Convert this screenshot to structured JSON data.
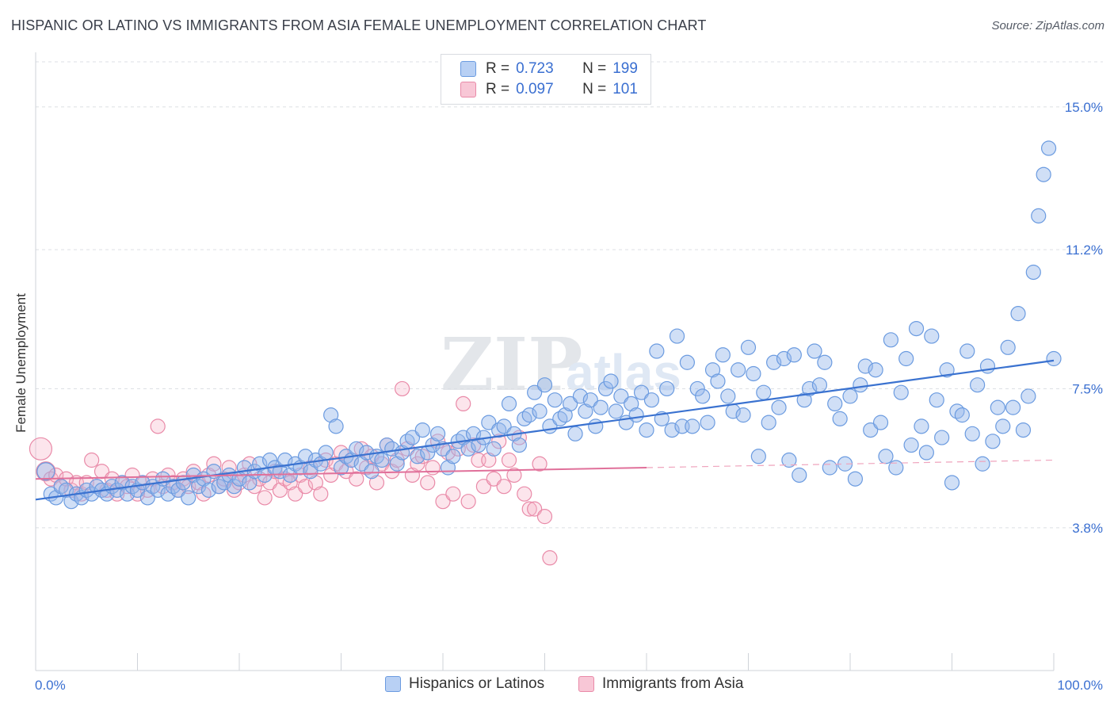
{
  "title": "HISPANIC OR LATINO VS IMMIGRANTS FROM ASIA FEMALE UNEMPLOYMENT CORRELATION CHART",
  "source": "Source: ZipAtlas.com",
  "watermark": "ZIPatlas",
  "legend": {
    "r_label": "R =",
    "n_label": "N =",
    "rows": [
      {
        "series": "Hispanics or Latinos",
        "r": "0.723",
        "n": "199",
        "color": "#4a7fd4"
      },
      {
        "series": "Immigrants from Asia",
        "r": "0.097",
        "n": "101",
        "color": "#e27aa0"
      }
    ]
  },
  "bottom_legend": [
    "Hispanics or Latinos",
    "Immigrants from Asia"
  ],
  "chart_data": {
    "type": "scatter",
    "title": "HISPANIC OR LATINO VS IMMIGRANTS FROM ASIA FEMALE UNEMPLOYMENT CORRELATION CHART",
    "xlabel": "",
    "ylabel": "Female Unemployment",
    "x_tick_labels": [
      "0.0%",
      "100.0%"
    ],
    "y_tick_labels": [
      "3.8%",
      "7.5%",
      "11.2%",
      "15.0%"
    ],
    "y_ticks": [
      3.8,
      7.5,
      11.2,
      15.0
    ],
    "xlim": [
      0,
      100
    ],
    "ylim": [
      0,
      16.2
    ],
    "grid": true,
    "legend_position": "top-center",
    "series": [
      {
        "name": "Hispanics or Latinos",
        "color": "#4a7fd4",
        "trend": {
          "x": [
            0,
            100
          ],
          "y": [
            4.55,
            8.25
          ]
        },
        "points": [
          [
            1,
            5.3
          ],
          [
            1.5,
            4.7
          ],
          [
            2,
            4.6
          ],
          [
            2.5,
            4.9
          ],
          [
            3,
            4.8
          ],
          [
            3.5,
            4.5
          ],
          [
            4,
            4.7
          ],
          [
            4.5,
            4.6
          ],
          [
            5,
            4.8
          ],
          [
            5.5,
            4.7
          ],
          [
            6,
            4.9
          ],
          [
            6.5,
            4.8
          ],
          [
            7,
            4.7
          ],
          [
            7.5,
            4.9
          ],
          [
            8,
            4.8
          ],
          [
            8.5,
            5.0
          ],
          [
            9,
            4.7
          ],
          [
            9.5,
            4.9
          ],
          [
            10,
            4.8
          ],
          [
            10.5,
            5.0
          ],
          [
            11,
            4.6
          ],
          [
            11.5,
            4.9
          ],
          [
            12,
            4.8
          ],
          [
            12.5,
            5.1
          ],
          [
            13,
            4.7
          ],
          [
            13.5,
            4.9
          ],
          [
            14,
            4.8
          ],
          [
            14.5,
            5.0
          ],
          [
            15,
            4.6
          ],
          [
            15.5,
            5.2
          ],
          [
            16,
            4.9
          ],
          [
            16.5,
            5.1
          ],
          [
            17,
            4.8
          ],
          [
            17.5,
            5.3
          ],
          [
            18,
            4.9
          ],
          [
            18.5,
            5.0
          ],
          [
            19,
            5.2
          ],
          [
            19.5,
            4.9
          ],
          [
            20,
            5.1
          ],
          [
            20.5,
            5.4
          ],
          [
            21,
            5.0
          ],
          [
            21.5,
            5.3
          ],
          [
            22,
            5.5
          ],
          [
            22.5,
            5.2
          ],
          [
            23,
            5.6
          ],
          [
            23.5,
            5.4
          ],
          [
            24,
            5.3
          ],
          [
            24.5,
            5.6
          ],
          [
            25,
            5.2
          ],
          [
            25.5,
            5.5
          ],
          [
            26,
            5.4
          ],
          [
            26.5,
            5.7
          ],
          [
            27,
            5.3
          ],
          [
            27.5,
            5.6
          ],
          [
            28,
            5.5
          ],
          [
            28.5,
            5.8
          ],
          [
            29,
            6.8
          ],
          [
            29.5,
            6.5
          ],
          [
            30,
            5.4
          ],
          [
            30.5,
            5.7
          ],
          [
            31,
            5.6
          ],
          [
            31.5,
            5.9
          ],
          [
            32,
            5.5
          ],
          [
            32.5,
            5.8
          ],
          [
            33,
            5.3
          ],
          [
            33.5,
            5.7
          ],
          [
            34,
            5.6
          ],
          [
            34.5,
            6.0
          ],
          [
            35,
            5.9
          ],
          [
            35.5,
            5.5
          ],
          [
            36,
            5.8
          ],
          [
            36.5,
            6.1
          ],
          [
            37,
            6.2
          ],
          [
            37.5,
            5.7
          ],
          [
            38,
            6.4
          ],
          [
            38.5,
            5.8
          ],
          [
            39,
            6.0
          ],
          [
            39.5,
            6.3
          ],
          [
            40,
            5.9
          ],
          [
            40.5,
            5.4
          ],
          [
            41,
            5.7
          ],
          [
            41.5,
            6.1
          ],
          [
            42,
            6.2
          ],
          [
            42.5,
            5.9
          ],
          [
            43,
            6.3
          ],
          [
            43.5,
            6.0
          ],
          [
            44,
            6.2
          ],
          [
            44.5,
            6.6
          ],
          [
            45,
            5.9
          ],
          [
            45.5,
            6.4
          ],
          [
            46,
            6.5
          ],
          [
            46.5,
            7.1
          ],
          [
            47,
            6.3
          ],
          [
            47.5,
            6.0
          ],
          [
            48,
            6.7
          ],
          [
            48.5,
            6.8
          ],
          [
            49,
            7.4
          ],
          [
            49.5,
            6.9
          ],
          [
            50,
            7.6
          ],
          [
            50.5,
            6.5
          ],
          [
            51,
            7.2
          ],
          [
            51.5,
            6.7
          ],
          [
            52,
            6.8
          ],
          [
            52.5,
            7.1
          ],
          [
            53,
            6.3
          ],
          [
            53.5,
            7.3
          ],
          [
            54,
            6.9
          ],
          [
            54.5,
            7.2
          ],
          [
            55,
            6.5
          ],
          [
            55.5,
            7.0
          ],
          [
            56,
            7.5
          ],
          [
            56.5,
            7.7
          ],
          [
            57,
            6.9
          ],
          [
            57.5,
            7.3
          ],
          [
            58,
            6.6
          ],
          [
            58.5,
            7.1
          ],
          [
            59,
            6.8
          ],
          [
            59.5,
            7.4
          ],
          [
            60,
            6.4
          ],
          [
            60.5,
            7.2
          ],
          [
            61,
            8.5
          ],
          [
            61.5,
            6.7
          ],
          [
            62,
            7.5
          ],
          [
            62.5,
            6.4
          ],
          [
            63,
            8.9
          ],
          [
            63.5,
            6.5
          ],
          [
            64,
            8.2
          ],
          [
            64.5,
            6.5
          ],
          [
            65,
            7.5
          ],
          [
            65.5,
            7.3
          ],
          [
            66,
            6.6
          ],
          [
            66.5,
            8.0
          ],
          [
            67,
            7.7
          ],
          [
            67.5,
            8.4
          ],
          [
            68,
            7.3
          ],
          [
            68.5,
            6.9
          ],
          [
            69,
            8.0
          ],
          [
            69.5,
            6.8
          ],
          [
            70,
            8.6
          ],
          [
            70.5,
            7.9
          ],
          [
            71,
            5.7
          ],
          [
            71.5,
            7.4
          ],
          [
            72,
            6.6
          ],
          [
            72.5,
            8.2
          ],
          [
            73,
            7.0
          ],
          [
            73.5,
            8.3
          ],
          [
            74,
            5.6
          ],
          [
            74.5,
            8.4
          ],
          [
            75,
            5.2
          ],
          [
            75.5,
            7.2
          ],
          [
            76,
            7.5
          ],
          [
            76.5,
            8.5
          ],
          [
            77,
            7.6
          ],
          [
            77.5,
            8.2
          ],
          [
            78,
            5.4
          ],
          [
            78.5,
            7.1
          ],
          [
            79,
            6.7
          ],
          [
            79.5,
            5.5
          ],
          [
            80,
            7.3
          ],
          [
            80.5,
            5.1
          ],
          [
            81,
            7.6
          ],
          [
            81.5,
            8.1
          ],
          [
            82,
            6.4
          ],
          [
            82.5,
            8.0
          ],
          [
            83,
            6.6
          ],
          [
            83.5,
            5.7
          ],
          [
            84,
            8.8
          ],
          [
            84.5,
            5.4
          ],
          [
            85,
            7.4
          ],
          [
            85.5,
            8.3
          ],
          [
            86,
            6.0
          ],
          [
            86.5,
            9.1
          ],
          [
            87,
            6.5
          ],
          [
            87.5,
            5.8
          ],
          [
            88,
            8.9
          ],
          [
            88.5,
            7.2
          ],
          [
            89,
            6.2
          ],
          [
            89.5,
            8.0
          ],
          [
            90,
            5.0
          ],
          [
            90.5,
            6.9
          ],
          [
            91,
            6.8
          ],
          [
            91.5,
            8.5
          ],
          [
            92,
            6.3
          ],
          [
            92.5,
            7.6
          ],
          [
            93,
            5.5
          ],
          [
            93.5,
            8.1
          ],
          [
            94,
            6.1
          ],
          [
            94.5,
            7.0
          ],
          [
            95,
            6.5
          ],
          [
            95.5,
            8.6
          ],
          [
            96,
            7.0
          ],
          [
            96.5,
            9.5
          ],
          [
            97,
            6.4
          ],
          [
            97.5,
            7.3
          ],
          [
            98,
            10.6
          ],
          [
            98.5,
            12.1
          ],
          [
            99,
            13.2
          ],
          [
            99.5,
            13.9
          ],
          [
            100,
            8.3
          ]
        ]
      },
      {
        "name": "Immigrants from Asia",
        "color": "#e27aa0",
        "trend": {
          "x": [
            0,
            60
          ],
          "y": [
            5.1,
            5.4
          ]
        },
        "trend_dashed": {
          "x": [
            60,
            100
          ],
          "y": [
            5.4,
            5.6
          ]
        },
        "points": [
          [
            0.5,
            5.9
          ],
          [
            1,
            5.3
          ],
          [
            1.5,
            5.1
          ],
          [
            2,
            5.2
          ],
          [
            2.5,
            4.9
          ],
          [
            3,
            5.1
          ],
          [
            3.5,
            4.8
          ],
          [
            4,
            5.0
          ],
          [
            4.5,
            4.7
          ],
          [
            5,
            5.0
          ],
          [
            5.5,
            5.6
          ],
          [
            6,
            4.9
          ],
          [
            6.5,
            5.3
          ],
          [
            7,
            4.8
          ],
          [
            7.5,
            5.1
          ],
          [
            8,
            4.7
          ],
          [
            8.5,
            5.0
          ],
          [
            9,
            4.9
          ],
          [
            9.5,
            5.2
          ],
          [
            10,
            4.7
          ],
          [
            10.5,
            5.0
          ],
          [
            11,
            4.8
          ],
          [
            11.5,
            5.1
          ],
          [
            12,
            6.5
          ],
          [
            12.5,
            4.9
          ],
          [
            13,
            5.2
          ],
          [
            13.5,
            5.0
          ],
          [
            14,
            4.8
          ],
          [
            14.5,
            5.1
          ],
          [
            15,
            4.9
          ],
          [
            15.5,
            5.3
          ],
          [
            16,
            5.0
          ],
          [
            16.5,
            4.7
          ],
          [
            17,
            5.2
          ],
          [
            17.5,
            5.5
          ],
          [
            18,
            4.9
          ],
          [
            18.5,
            5.1
          ],
          [
            19,
            5.4
          ],
          [
            19.5,
            4.8
          ],
          [
            20,
            5.0
          ],
          [
            20.5,
            5.2
          ],
          [
            21,
            5.5
          ],
          [
            21.5,
            4.9
          ],
          [
            22,
            5.1
          ],
          [
            22.5,
            4.6
          ],
          [
            23,
            5.0
          ],
          [
            23.5,
            5.3
          ],
          [
            24,
            4.8
          ],
          [
            24.5,
            5.1
          ],
          [
            25,
            5.0
          ],
          [
            25.5,
            4.7
          ],
          [
            26,
            5.2
          ],
          [
            26.5,
            4.9
          ],
          [
            27,
            5.4
          ],
          [
            27.5,
            5.0
          ],
          [
            28,
            4.7
          ],
          [
            28.5,
            5.6
          ],
          [
            29,
            5.2
          ],
          [
            29.5,
            5.5
          ],
          [
            30,
            5.8
          ],
          [
            30.5,
            5.3
          ],
          [
            31,
            5.6
          ],
          [
            31.5,
            5.1
          ],
          [
            32,
            5.9
          ],
          [
            32.5,
            5.4
          ],
          [
            33,
            5.7
          ],
          [
            33.5,
            5.0
          ],
          [
            34,
            5.5
          ],
          [
            34.5,
            6.0
          ],
          [
            35,
            5.3
          ],
          [
            35.5,
            5.6
          ],
          [
            36,
            7.5
          ],
          [
            36.5,
            5.9
          ],
          [
            37,
            5.2
          ],
          [
            37.5,
            5.5
          ],
          [
            38,
            5.7
          ],
          [
            38.5,
            5.0
          ],
          [
            39,
            5.4
          ],
          [
            39.5,
            6.1
          ],
          [
            40,
            4.5
          ],
          [
            40.5,
            5.8
          ],
          [
            41,
            4.7
          ],
          [
            41.5,
            5.9
          ],
          [
            42,
            7.1
          ],
          [
            42.5,
            4.5
          ],
          [
            43,
            6.0
          ],
          [
            43.5,
            5.6
          ],
          [
            44,
            4.9
          ],
          [
            44.5,
            5.6
          ],
          [
            45,
            5.1
          ],
          [
            45.5,
            6.1
          ],
          [
            46,
            4.9
          ],
          [
            46.5,
            5.6
          ],
          [
            47,
            5.2
          ],
          [
            47.5,
            6.2
          ],
          [
            48,
            4.7
          ],
          [
            48.5,
            4.3
          ],
          [
            49,
            4.3
          ],
          [
            49.5,
            5.5
          ],
          [
            50,
            4.1
          ],
          [
            50.5,
            3.0
          ]
        ]
      }
    ]
  }
}
